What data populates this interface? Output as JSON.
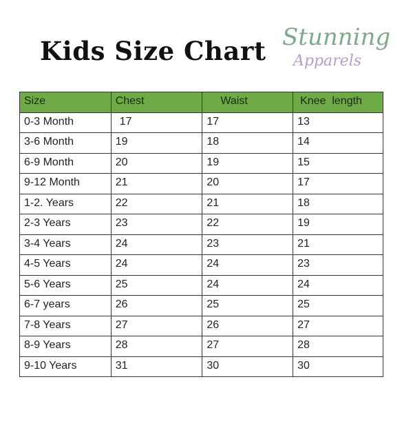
{
  "title": "Kids Size Chart",
  "logo": {
    "line1": "Stunning",
    "line2": "Apparels"
  },
  "colors": {
    "header_bg": "#6eaa45",
    "logo_green": "#7fa98a",
    "logo_purple": "#b79ccf"
  },
  "table": {
    "headers": [
      "Size",
      "Chest",
      "Waist",
      "Knee  length"
    ],
    "rows": [
      [
        "0-3 Month",
        "17",
        "17",
        "13"
      ],
      [
        "3-6 Month",
        "19",
        "18",
        "14"
      ],
      [
        "6-9 Month",
        "20",
        "19",
        "15"
      ],
      [
        "9-12 Month",
        "21",
        "20",
        "17"
      ],
      [
        "1-2. Years",
        "22",
        "21",
        "18"
      ],
      [
        "2-3 Years",
        "23",
        "22",
        "19"
      ],
      [
        "3-4 Years",
        "24",
        "23",
        "21"
      ],
      [
        "4-5 Years",
        "24",
        "24",
        "23"
      ],
      [
        "5-6 Years",
        "25",
        "24",
        "24"
      ],
      [
        "6-7 years",
        "26",
        "25",
        "25"
      ],
      [
        "7-8 Years",
        "27",
        "26",
        "27"
      ],
      [
        "8-9 Years",
        "28",
        "27",
        "28"
      ],
      [
        "9-10 Years",
        "31",
        "30",
        "30"
      ]
    ]
  }
}
